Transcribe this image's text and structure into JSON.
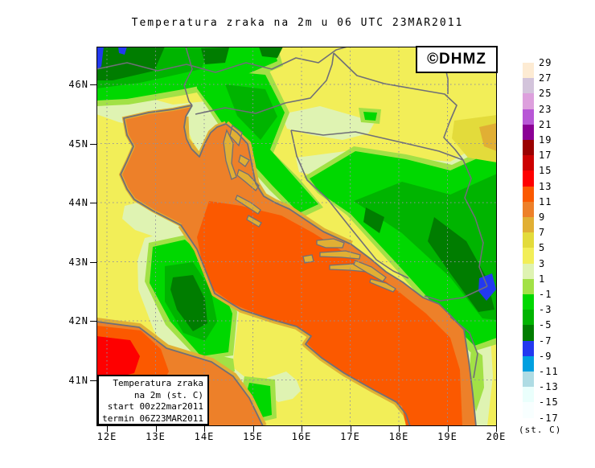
{
  "title": "Temperatura zraka na 2m u 06 UTC 23MAR2011",
  "watermark": "©DHMZ",
  "legend_box": {
    "lines": [
      "Temperatura zraka",
      "na 2m (st. C)",
      "start 00z22mar2011",
      "termin 06Z23MAR2011"
    ]
  },
  "x_axis": {
    "labels": [
      "12E",
      "13E",
      "14E",
      "15E",
      "16E",
      "17E",
      "18E",
      "19E",
      "20E"
    ]
  },
  "y_axis": {
    "labels": [
      "46N",
      "45N",
      "44N",
      "43N",
      "42N",
      "41N"
    ]
  },
  "colorbar": {
    "unit_label": "(st. C)",
    "tick_labels": [
      "29",
      "27",
      "25",
      "23",
      "21",
      "19",
      "17",
      "15",
      "13",
      "11",
      "9",
      "7",
      "5",
      "3",
      "1",
      "-1",
      "-3",
      "-5",
      "-7",
      "-9",
      "-11",
      "-13",
      "-15",
      "-17"
    ],
    "block_colors": [
      "#FDEBD3",
      "#D3C4DB",
      "#DDA0DD",
      "#B857D6",
      "#8B0095",
      "#9A0000",
      "#CD0000",
      "#FE0000",
      "#FB5900",
      "#ED8029",
      "#E1AF34",
      "#E3DB3B",
      "#F2EE58",
      "#DFF3B2",
      "#A2E146",
      "#00D800",
      "#00B400",
      "#007D00",
      "#2339F0",
      "#00A0E0",
      "#AFDCE4",
      "#EAFFFC",
      "#F8FFFF"
    ]
  },
  "palette": {
    "t15_13": "#FE0000",
    "t13_11": "#FB5900",
    "t11_9": "#ED8029",
    "t9_7": "#E1AF34",
    "t7_5": "#E3DB3B",
    "t5_3": "#F2EE58",
    "t3_1": "#DFF3B2",
    "t1_m1": "#A2E146",
    "tm1_m3": "#00D800",
    "tm3_m5": "#00B400",
    "tm5_m7": "#007D00",
    "tm7_m9": "#2339F0",
    "coast": "#6F6F78",
    "grid": "#90909E",
    "frame": "#000000",
    "dhmz_blue": "#2222CC"
  }
}
